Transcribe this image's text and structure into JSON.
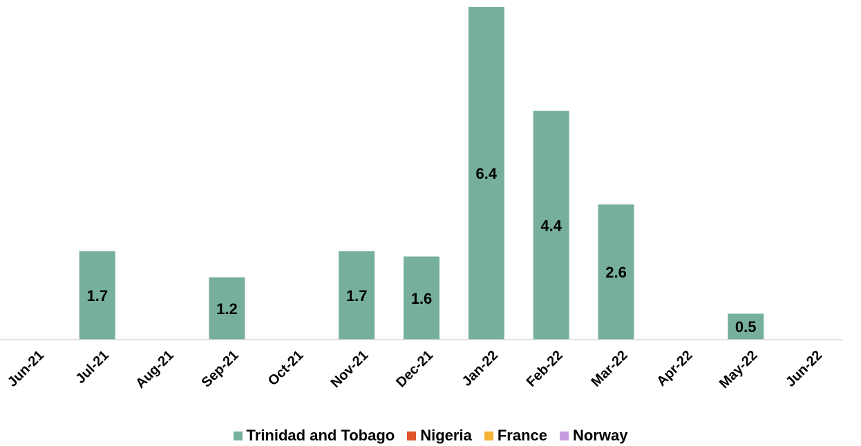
{
  "chart_data": {
    "type": "bar",
    "stacked": true,
    "categories": [
      "Jun-21",
      "Jul-21",
      "Aug-21",
      "Sep-21",
      "Oct-21",
      "Nov-21",
      "Dec-21",
      "Jan-22",
      "Feb-22",
      "Mar-22",
      "Apr-22",
      "May-22",
      "Jun-22"
    ],
    "series": [
      {
        "name": "Trinidad and Tobago",
        "color": "#76b09a",
        "values": [
          0,
          1.7,
          0,
          1.2,
          0,
          1.7,
          1.6,
          6.4,
          4.4,
          2.6,
          0,
          0.5,
          0
        ]
      },
      {
        "name": "Nigeria",
        "color": "#e0522a",
        "values": [
          0,
          0,
          0,
          0,
          0,
          0,
          0,
          0,
          0,
          0,
          0,
          0,
          0
        ]
      },
      {
        "name": "France",
        "color": "#f5b335",
        "values": [
          0,
          0,
          0,
          0,
          0,
          0,
          0,
          0,
          0,
          0,
          0,
          0,
          0
        ]
      },
      {
        "name": "Norway",
        "color": "#c79be0",
        "values": [
          0,
          0,
          0,
          0,
          0,
          0,
          0,
          0,
          0,
          0,
          0,
          0,
          0
        ]
      }
    ],
    "data_labels": [
      "",
      "1.7",
      "",
      "1.2",
      "",
      "1.7",
      "1.6",
      "6.4",
      "4.4",
      "2.6",
      "",
      "0.5",
      ""
    ],
    "ylim": [
      0,
      6.4
    ],
    "title": "",
    "xlabel": "",
    "ylabel": "",
    "grid": false,
    "legend_position": "bottom"
  }
}
